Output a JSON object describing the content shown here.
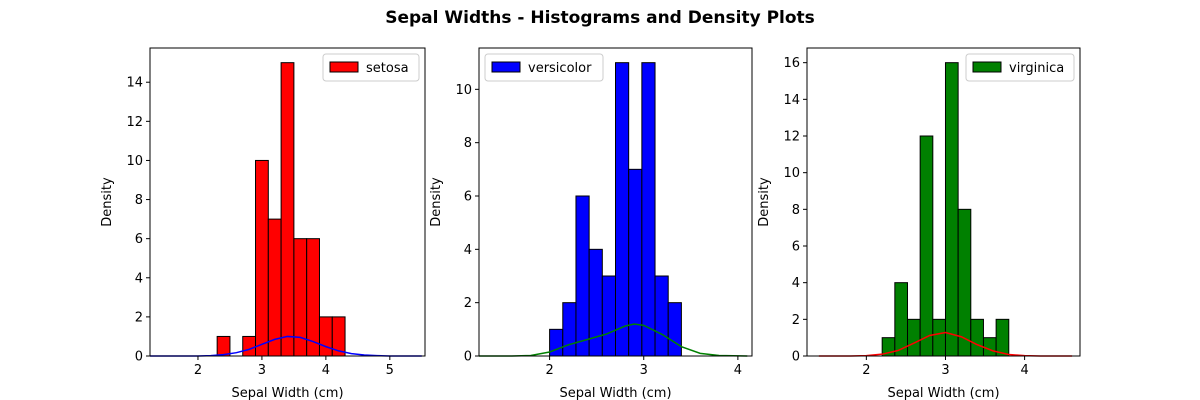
{
  "suptitle": "Sepal Widths - Histograms and Density Plots",
  "chart_data": [
    {
      "type": "bar",
      "subtype": "histogram-with-density",
      "legend": "setosa",
      "legend_loc": "upper right",
      "bar_color": "#ff0000",
      "density_color": "#0000ff",
      "xlabel": "Sepal Width (cm)",
      "ylabel": "Density",
      "xlim": [
        1.25,
        5.55
      ],
      "ylim": [
        0,
        15.75
      ],
      "xticks": [
        2,
        3,
        4,
        5
      ],
      "yticks": [
        0,
        2,
        4,
        6,
        8,
        10,
        12,
        14
      ],
      "bin_edges": [
        2.3,
        2.5,
        2.7,
        2.9,
        3.1,
        3.3,
        3.5,
        3.7,
        3.9,
        4.1,
        4.3,
        4.4
      ],
      "counts": [
        1,
        0,
        1,
        10,
        7,
        15,
        6,
        6,
        2,
        2,
        0
      ],
      "density_x": [
        1.25,
        1.7,
        2.0,
        2.2,
        2.4,
        2.6,
        2.8,
        3.0,
        3.2,
        3.4,
        3.6,
        3.8,
        4.0,
        4.2,
        4.4,
        4.6,
        4.8,
        5.0,
        5.2,
        5.5
      ],
      "density_y": [
        0.0,
        0.0,
        0.0,
        0.02,
        0.07,
        0.17,
        0.34,
        0.6,
        0.85,
        1.0,
        0.95,
        0.74,
        0.48,
        0.26,
        0.12,
        0.05,
        0.02,
        0.0,
        0.0,
        0.0
      ]
    },
    {
      "type": "bar",
      "subtype": "histogram-with-density",
      "legend": "versicolor",
      "legend_loc": "upper left",
      "bar_color": "#0000ff",
      "density_color": "#008000",
      "xlabel": "Sepal Width (cm)",
      "ylabel": "Density",
      "xlim": [
        1.25,
        4.15
      ],
      "ylim": [
        0,
        11.55
      ],
      "xticks": [
        2,
        3,
        4
      ],
      "yticks": [
        0,
        2,
        4,
        6,
        8,
        10
      ],
      "bin_edges": [
        2.0,
        2.14,
        2.28,
        2.42,
        2.56,
        2.7,
        2.84,
        2.98,
        3.12,
        3.26,
        3.4
      ],
      "counts": [
        1,
        2,
        6,
        4,
        3,
        11,
        7,
        11,
        3,
        2
      ],
      "density_x": [
        1.25,
        1.6,
        1.8,
        2.0,
        2.2,
        2.4,
        2.6,
        2.8,
        2.9,
        3.0,
        3.2,
        3.4,
        3.6,
        3.8,
        4.1
      ],
      "density_y": [
        0.0,
        0.0,
        0.02,
        0.15,
        0.42,
        0.62,
        0.82,
        1.12,
        1.2,
        1.15,
        0.8,
        0.35,
        0.1,
        0.02,
        0.0
      ]
    },
    {
      "type": "bar",
      "subtype": "histogram-with-density",
      "legend": "virginica",
      "legend_loc": "upper right",
      "bar_color": "#008000",
      "density_color": "#ff0000",
      "xlabel": "Sepal Width (cm)",
      "ylabel": "Density",
      "xlim": [
        1.25,
        4.7
      ],
      "ylim": [
        0,
        16.8
      ],
      "xticks": [
        2,
        3,
        4
      ],
      "yticks": [
        0,
        2,
        4,
        6,
        8,
        10,
        12,
        14,
        16
      ],
      "bin_edges": [
        2.2,
        2.36,
        2.52,
        2.68,
        2.84,
        3.0,
        3.16,
        3.32,
        3.48,
        3.64,
        3.8
      ],
      "counts": [
        1,
        4,
        2,
        12,
        2,
        16,
        8,
        2,
        1,
        2
      ],
      "density_x": [
        1.4,
        1.8,
        2.0,
        2.2,
        2.4,
        2.6,
        2.8,
        3.0,
        3.2,
        3.4,
        3.6,
        3.8,
        4.0,
        4.2,
        4.6
      ],
      "density_y": [
        0.0,
        0.0,
        0.02,
        0.1,
        0.3,
        0.7,
        1.12,
        1.28,
        1.05,
        0.62,
        0.28,
        0.08,
        0.02,
        0.0,
        0.0
      ]
    }
  ]
}
